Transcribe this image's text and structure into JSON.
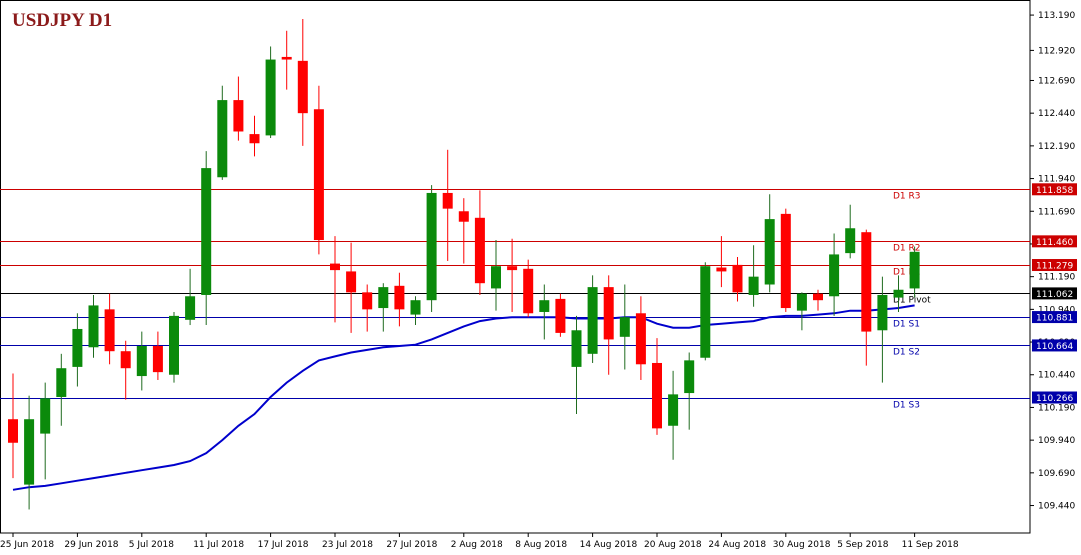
{
  "title": "USDJPY D1",
  "colors": {
    "bull": "#0b8a0b",
    "bear": "#ff0000",
    "wick": "#1f6b1f",
    "ma": "#0000cc",
    "resistance": "#cc0000",
    "support": "#0000aa",
    "pivot": "#000000",
    "axis": "#000000",
    "text": "#000000"
  },
  "chart_data": {
    "type": "candlestick",
    "symbol": "USDJPY",
    "timeframe": "D1",
    "ylim": [
      109.23,
      113.29
    ],
    "y_ticks": [
      113.19,
      112.92,
      112.69,
      112.44,
      112.19,
      111.94,
      111.69,
      111.44,
      111.19,
      110.94,
      110.69,
      110.44,
      110.19,
      109.94,
      109.69,
      109.44
    ],
    "y_tick_labels": [
      "113.190",
      "112.920",
      "112.690",
      "112.440",
      "112.190",
      "111.940",
      "111.690",
      "111.440",
      "111.190",
      "110.940",
      "110.690",
      "110.440",
      "110.190",
      "109.940",
      "109.690",
      "109.440"
    ],
    "x_labels": [
      {
        "index": 0,
        "label": "25 Jun 2018"
      },
      {
        "index": 4,
        "label": "29 Jun 2018"
      },
      {
        "index": 8,
        "label": "5 Jul 2018"
      },
      {
        "index": 12,
        "label": "11 Jul 2018"
      },
      {
        "index": 16,
        "label": "17 Jul 2018"
      },
      {
        "index": 20,
        "label": "23 Jul 2018"
      },
      {
        "index": 24,
        "label": "27 Jul 2018"
      },
      {
        "index": 28,
        "label": "2 Aug 2018"
      },
      {
        "index": 32,
        "label": "8 Aug 2018"
      },
      {
        "index": 36,
        "label": "14 Aug 2018"
      },
      {
        "index": 40,
        "label": "20 Aug 2018"
      },
      {
        "index": 44,
        "label": "24 Aug 2018"
      },
      {
        "index": 48,
        "label": "30 Aug 2018"
      },
      {
        "index": 52,
        "label": "5 Sep 2018"
      },
      {
        "index": 56,
        "label": "11 Sep 2018"
      }
    ],
    "candles": [
      {
        "o": 110.1,
        "h": 110.45,
        "l": 109.65,
        "c": 109.92
      },
      {
        "o": 109.6,
        "h": 110.28,
        "l": 109.41,
        "c": 110.1
      },
      {
        "o": 109.99,
        "h": 110.38,
        "l": 109.64,
        "c": 110.26
      },
      {
        "o": 110.27,
        "h": 110.6,
        "l": 110.05,
        "c": 110.49
      },
      {
        "o": 110.5,
        "h": 110.91,
        "l": 110.35,
        "c": 110.79
      },
      {
        "o": 110.65,
        "h": 111.05,
        "l": 110.57,
        "c": 110.97
      },
      {
        "o": 110.94,
        "h": 111.06,
        "l": 110.52,
        "c": 110.62
      },
      {
        "o": 110.62,
        "h": 110.7,
        "l": 110.25,
        "c": 110.49
      },
      {
        "o": 110.43,
        "h": 110.77,
        "l": 110.32,
        "c": 110.66
      },
      {
        "o": 110.66,
        "h": 110.77,
        "l": 110.4,
        "c": 110.46
      },
      {
        "o": 110.44,
        "h": 110.92,
        "l": 110.38,
        "c": 110.89
      },
      {
        "o": 110.86,
        "h": 111.25,
        "l": 110.82,
        "c": 111.04
      },
      {
        "o": 111.05,
        "h": 112.15,
        "l": 110.82,
        "c": 112.02
      },
      {
        "o": 111.95,
        "h": 112.65,
        "l": 111.93,
        "c": 112.54
      },
      {
        "o": 112.54,
        "h": 112.72,
        "l": 112.23,
        "c": 112.3
      },
      {
        "o": 112.28,
        "h": 112.42,
        "l": 112.11,
        "c": 112.21
      },
      {
        "o": 112.27,
        "h": 112.95,
        "l": 112.25,
        "c": 112.85
      },
      {
        "o": 112.87,
        "h": 113.07,
        "l": 112.62,
        "c": 112.85
      },
      {
        "o": 112.84,
        "h": 113.16,
        "l": 112.19,
        "c": 112.44
      },
      {
        "o": 112.47,
        "h": 112.65,
        "l": 111.36,
        "c": 111.47
      },
      {
        "o": 111.29,
        "h": 111.5,
        "l": 110.84,
        "c": 111.24
      },
      {
        "o": 111.23,
        "h": 111.45,
        "l": 110.76,
        "c": 111.07
      },
      {
        "o": 111.07,
        "h": 111.13,
        "l": 110.77,
        "c": 110.94
      },
      {
        "o": 110.95,
        "h": 111.14,
        "l": 110.77,
        "c": 111.11
      },
      {
        "o": 111.12,
        "h": 111.22,
        "l": 110.81,
        "c": 110.94
      },
      {
        "o": 110.9,
        "h": 111.04,
        "l": 110.82,
        "c": 111.01
      },
      {
        "o": 111.01,
        "h": 111.89,
        "l": 110.92,
        "c": 111.83
      },
      {
        "o": 111.83,
        "h": 112.16,
        "l": 111.31,
        "c": 111.71
      },
      {
        "o": 111.69,
        "h": 111.79,
        "l": 111.29,
        "c": 111.61
      },
      {
        "o": 111.64,
        "h": 111.85,
        "l": 111.05,
        "c": 111.14
      },
      {
        "o": 111.1,
        "h": 111.47,
        "l": 110.93,
        "c": 111.27
      },
      {
        "o": 111.27,
        "h": 111.48,
        "l": 110.92,
        "c": 111.24
      },
      {
        "o": 111.25,
        "h": 111.32,
        "l": 110.88,
        "c": 110.91
      },
      {
        "o": 110.92,
        "h": 111.13,
        "l": 110.71,
        "c": 111.01
      },
      {
        "o": 111.02,
        "h": 111.06,
        "l": 110.73,
        "c": 110.76
      },
      {
        "o": 110.5,
        "h": 110.89,
        "l": 110.14,
        "c": 110.78
      },
      {
        "o": 110.6,
        "h": 111.2,
        "l": 110.53,
        "c": 111.11
      },
      {
        "o": 111.11,
        "h": 111.2,
        "l": 110.44,
        "c": 110.71
      },
      {
        "o": 110.73,
        "h": 111.13,
        "l": 110.48,
        "c": 110.88
      },
      {
        "o": 110.91,
        "h": 111.04,
        "l": 110.4,
        "c": 110.52
      },
      {
        "o": 110.53,
        "h": 110.72,
        "l": 109.98,
        "c": 110.03
      },
      {
        "o": 110.05,
        "h": 110.47,
        "l": 109.79,
        "c": 110.29
      },
      {
        "o": 110.3,
        "h": 110.61,
        "l": 110.02,
        "c": 110.55
      },
      {
        "o": 110.57,
        "h": 111.3,
        "l": 110.55,
        "c": 111.27
      },
      {
        "o": 111.26,
        "h": 111.5,
        "l": 111.11,
        "c": 111.23
      },
      {
        "o": 111.28,
        "h": 111.34,
        "l": 111.0,
        "c": 111.07
      },
      {
        "o": 111.05,
        "h": 111.43,
        "l": 110.96,
        "c": 111.19
      },
      {
        "o": 111.13,
        "h": 111.82,
        "l": 111.07,
        "c": 111.63
      },
      {
        "o": 111.67,
        "h": 111.71,
        "l": 110.92,
        "c": 110.95
      },
      {
        "o": 110.93,
        "h": 111.07,
        "l": 110.78,
        "c": 111.06
      },
      {
        "o": 111.06,
        "h": 111.09,
        "l": 110.93,
        "c": 111.01
      },
      {
        "o": 111.04,
        "h": 111.52,
        "l": 110.89,
        "c": 111.36
      },
      {
        "o": 111.37,
        "h": 111.74,
        "l": 111.33,
        "c": 111.56
      },
      {
        "o": 111.53,
        "h": 111.55,
        "l": 110.51,
        "c": 110.77
      },
      {
        "o": 110.78,
        "h": 111.19,
        "l": 110.38,
        "c": 111.05
      },
      {
        "o": 111.03,
        "h": 111.2,
        "l": 110.92,
        "c": 111.09
      },
      {
        "o": 111.1,
        "h": 111.42,
        "l": 111.03,
        "c": 111.38
      }
    ],
    "moving_average": [
      109.56,
      109.58,
      109.59,
      109.61,
      109.63,
      109.65,
      109.67,
      109.69,
      109.71,
      109.73,
      109.75,
      109.78,
      109.84,
      109.94,
      110.05,
      110.14,
      110.27,
      110.38,
      110.47,
      110.55,
      110.58,
      110.61,
      110.63,
      110.65,
      110.66,
      110.67,
      110.71,
      110.76,
      110.81,
      110.85,
      110.87,
      110.88,
      110.88,
      110.88,
      110.88,
      110.87,
      110.87,
      110.87,
      110.88,
      110.88,
      110.83,
      110.8,
      110.8,
      110.82,
      110.83,
      110.84,
      110.85,
      110.88,
      110.89,
      110.89,
      110.9,
      110.91,
      110.93,
      110.93,
      110.94,
      110.95,
      110.97
    ],
    "levels": [
      {
        "name": "D1 R3",
        "value": 111.858,
        "label": "111.858",
        "kind": "resistance"
      },
      {
        "name": "D1 R2",
        "value": 111.46,
        "label": "111.460",
        "kind": "resistance"
      },
      {
        "name": "D1 R1",
        "value": 111.279,
        "label": "111.279",
        "kind": "resistance"
      },
      {
        "name": "D1 Pivot",
        "value": 111.062,
        "label": "111.062",
        "kind": "pivot"
      },
      {
        "name": "D1 S1",
        "value": 110.881,
        "label": "110.881",
        "kind": "support"
      },
      {
        "name": "D1 S2",
        "value": 110.664,
        "label": "110.664",
        "kind": "support"
      },
      {
        "name": "D1 S3",
        "value": 110.266,
        "label": "110.266",
        "kind": "support"
      }
    ]
  }
}
